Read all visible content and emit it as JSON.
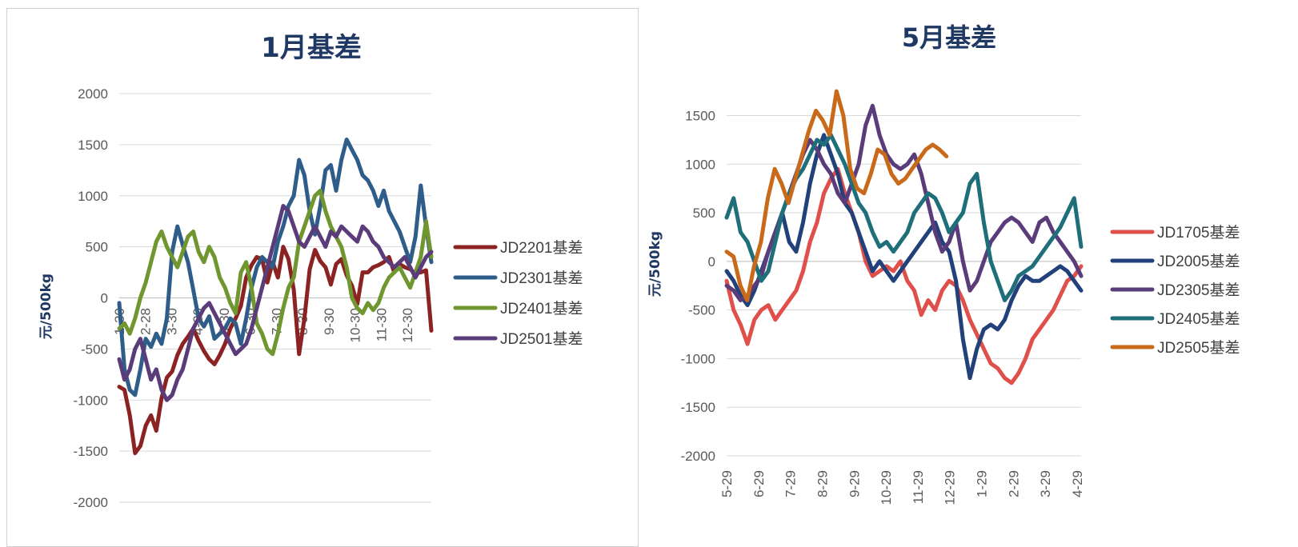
{
  "chart_data": [
    {
      "type": "line",
      "title": "1月基差",
      "ylabel": "元/500kg",
      "xlabel": "",
      "ylim": [
        -2000,
        2000
      ],
      "yticks": [
        2000,
        1500,
        1000,
        500,
        0,
        -500,
        -1000,
        -1500,
        -2000
      ],
      "x_tick_labels": [
        "1-30",
        "2-28",
        "3-30",
        "4-30",
        "5-30",
        "6-30",
        "7-30",
        "8-30",
        "9-30",
        "10-30",
        "11-30",
        "12-30"
      ],
      "grid": true,
      "legend_position": "right",
      "series": [
        {
          "name": "JD2201基差",
          "color": "#8b2323",
          "values": [
            -870,
            -900,
            -1150,
            -1520,
            -1450,
            -1250,
            -1150,
            -1300,
            -980,
            -780,
            -720,
            -560,
            -450,
            -380,
            -300,
            -420,
            -520,
            -600,
            -650,
            -560,
            -450,
            -300,
            -200,
            -80,
            200,
            320,
            400,
            380,
            150,
            350,
            200,
            500,
            380,
            80,
            -550,
            -200,
            280,
            470,
            360,
            300,
            130,
            330,
            380,
            220,
            120,
            -60,
            250,
            250,
            300,
            320,
            350,
            400,
            250,
            330,
            300,
            280,
            240,
            250,
            270,
            -320
          ]
        },
        {
          "name": "JD2301基差",
          "color": "#2f5d8a",
          "values": [
            -50,
            -700,
            -900,
            -950,
            -700,
            -400,
            -480,
            -350,
            -450,
            -200,
            450,
            700,
            520,
            350,
            80,
            -200,
            -280,
            -180,
            -400,
            -350,
            -300,
            -200,
            -250,
            -450,
            -200,
            100,
            300,
            400,
            350,
            300,
            550,
            700,
            900,
            1000,
            1350,
            1200,
            850,
            620,
            900,
            1250,
            1300,
            1050,
            1350,
            1550,
            1450,
            1350,
            1200,
            1150,
            1050,
            900,
            1050,
            850,
            750,
            650,
            500,
            350,
            600,
            1100,
            700,
            350
          ]
        },
        {
          "name": "JD2401基差",
          "color": "#70962f",
          "values": [
            -300,
            -250,
            -350,
            -200,
            0,
            150,
            350,
            550,
            650,
            500,
            400,
            300,
            450,
            600,
            650,
            450,
            350,
            500,
            400,
            200,
            100,
            -50,
            -150,
            250,
            350,
            100,
            -250,
            -350,
            -500,
            -550,
            -350,
            -100,
            100,
            200,
            550,
            700,
            850,
            1000,
            1050,
            850,
            700,
            600,
            500,
            300,
            0,
            -100,
            -150,
            -50,
            -120,
            -50,
            100,
            200,
            250,
            300,
            200,
            100,
            250,
            400,
            750,
            400
          ]
        },
        {
          "name": "JD2501基差",
          "color": "#5b3c7a",
          "values": [
            -600,
            -800,
            -700,
            -500,
            -400,
            -600,
            -800,
            -700,
            -900,
            -1000,
            -950,
            -800,
            -700,
            -500,
            -300,
            -200,
            -100,
            -50,
            -150,
            -250,
            -350,
            -450,
            -550,
            -500,
            -450,
            -300,
            -100,
            100,
            300,
            500,
            700,
            900,
            850,
            700,
            550,
            500,
            600,
            700,
            600,
            500,
            650,
            600,
            700,
            650,
            600,
            550,
            700,
            650,
            550,
            500,
            400,
            350,
            300,
            350,
            400,
            300,
            200,
            300,
            400,
            450
          ]
        }
      ]
    },
    {
      "type": "line",
      "title": "5月基差",
      "ylabel": "元/500kg",
      "xlabel": "",
      "ylim": [
        -2000,
        1800
      ],
      "yticks": [
        1500,
        1000,
        500,
        0,
        -500,
        -1000,
        -1500,
        -2000
      ],
      "x_tick_labels": [
        "5-29",
        "6-29",
        "7-29",
        "8-29",
        "9-29",
        "10-29",
        "11-29",
        "12-29",
        "1-29",
        "2-29",
        "3-29",
        "4-29"
      ],
      "grid": true,
      "legend_position": "right",
      "series": [
        {
          "name": "JD1705基差",
          "color": "#e0504a",
          "values": [
            -200,
            -500,
            -650,
            -850,
            -600,
            -500,
            -450,
            -600,
            -500,
            -400,
            -300,
            -100,
            200,
            400,
            700,
            850,
            950,
            700,
            500,
            300,
            0,
            -150,
            -100,
            -50,
            -100,
            0,
            -200,
            -300,
            -550,
            -400,
            -500,
            -300,
            -200,
            -250,
            -400,
            -600,
            -750,
            -900,
            -1050,
            -1100,
            -1200,
            -1250,
            -1150,
            -1000,
            -800,
            -700,
            -600,
            -500,
            -350,
            -200,
            -150,
            -50
          ]
        },
        {
          "name": "JD2005基差",
          "color": "#22407a",
          "values": [
            -100,
            -200,
            -350,
            -450,
            -300,
            -100,
            100,
            300,
            500,
            200,
            100,
            400,
            800,
            1100,
            1300,
            1100,
            900,
            600,
            500,
            300,
            100,
            -100,
            0,
            -100,
            -200,
            -100,
            0,
            100,
            200,
            300,
            400,
            200,
            100,
            -200,
            -800,
            -1200,
            -900,
            -700,
            -650,
            -700,
            -600,
            -400,
            -250,
            -150,
            -200,
            -200,
            -150,
            -100,
            -50,
            -100,
            -200,
            -300
          ]
        },
        {
          "name": "JD2305基差",
          "color": "#5b3c7a",
          "values": [
            -250,
            -300,
            -400,
            -350,
            -250,
            -150,
            100,
            300,
            500,
            700,
            900,
            1100,
            1250,
            1150,
            1000,
            900,
            700,
            600,
            800,
            1000,
            1400,
            1600,
            1300,
            1100,
            1000,
            950,
            1000,
            1100,
            900,
            600,
            300,
            100,
            200,
            400,
            0,
            -300,
            -200,
            0,
            200,
            300,
            400,
            450,
            400,
            300,
            200,
            400,
            450,
            300,
            200,
            100,
            0,
            -150
          ]
        },
        {
          "name": "JD2405基差",
          "color": "#1f6f7a",
          "values": [
            450,
            650,
            300,
            200,
            0,
            -200,
            -100,
            200,
            500,
            700,
            850,
            950,
            1100,
            1250,
            1200,
            1300,
            1150,
            1000,
            800,
            600,
            500,
            300,
            150,
            200,
            100,
            200,
            300,
            500,
            600,
            700,
            650,
            500,
            300,
            400,
            500,
            800,
            900,
            400,
            0,
            -200,
            -400,
            -300,
            -150,
            -100,
            -50,
            50,
            150,
            250,
            350,
            500,
            650,
            150
          ]
        },
        {
          "name": "JD2505基差",
          "color": "#c86a1a",
          "values": [
            100,
            50,
            -250,
            -400,
            -50,
            200,
            650,
            950,
            800,
            600,
            850,
            1100,
            1350,
            1550,
            1450,
            1300,
            1750,
            1500,
            950,
            750,
            700,
            900,
            1150,
            1100,
            900,
            800,
            850,
            950,
            1050,
            1150,
            1200,
            1150,
            1080
          ]
        }
      ]
    }
  ]
}
